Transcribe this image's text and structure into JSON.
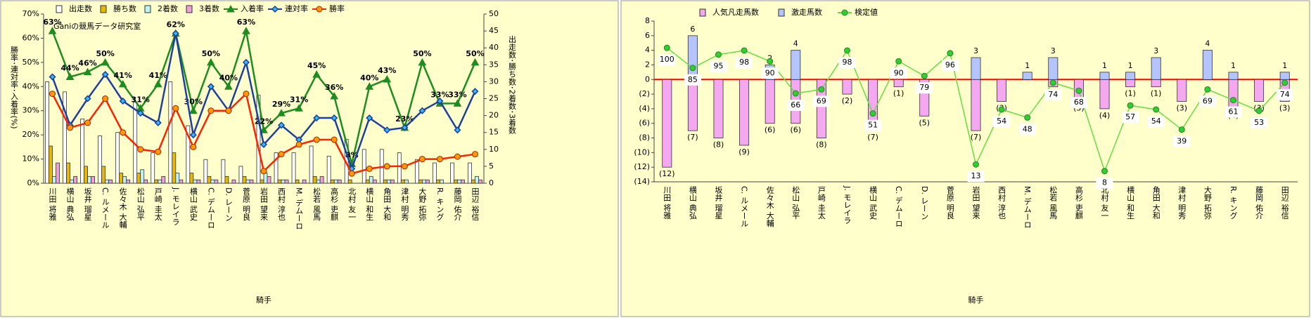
{
  "chart_data": [
    {
      "type": "combo",
      "watermark": "Ganiの競馬データ研究室",
      "ylabel": "勝率･連対率･入着率(%)",
      "y2label": "出走数･勝ち数･2着数･3着数",
      "xlabel": "騎手",
      "categories": [
        "川田 将雅",
        "横山 典弘",
        "坂井 瑠星",
        "C. ルメール",
        "佐々木 大輔",
        "松山 弘平",
        "戸崎 圭太",
        "J. モレイラ",
        "横山 武史",
        "C. デムーロ",
        "D. レーン",
        "菅原 明良",
        "岩田 望来",
        "西村 淳也",
        "M. デムーロ",
        "松若 風馬",
        "高杉 吏麒",
        "北村 友一",
        "横山 和生",
        "角田 大和",
        "津村 明秀",
        "大野 拓弥",
        "R. キング",
        "藤岡 佑介",
        "田辺 裕信"
      ],
      "bar_mode": "grouped",
      "legend": "top",
      "ylim": [
        0,
        70
      ],
      "yticks": [
        {
          "value": 0,
          "label": "0%"
        },
        {
          "value": 10,
          "label": "10%"
        },
        {
          "value": 20,
          "label": "20%"
        },
        {
          "value": 30,
          "label": "30%"
        },
        {
          "value": 40,
          "label": "40%"
        },
        {
          "value": 50,
          "label": "50%"
        },
        {
          "value": 60,
          "label": "60%"
        },
        {
          "value": 70,
          "label": "70%"
        }
      ],
      "y2lim": [
        0,
        50
      ],
      "y2ticks": [
        0,
        5,
        10,
        15,
        20,
        25,
        30,
        35,
        40,
        45,
        50
      ],
      "series": [
        {
          "name": "出走数",
          "type": "bar",
          "axis": "y2",
          "color": "#ffffff",
          "values": [
            30,
            27,
            19,
            14,
            15,
            24,
            9,
            30,
            17,
            7,
            7,
            5,
            26,
            9,
            9,
            11,
            8,
            13,
            10,
            10,
            9,
            7,
            6,
            6,
            6
          ]
        },
        {
          "name": "勝ち数",
          "type": "bar",
          "axis": "y2",
          "color": "#e8b800",
          "values": [
            11,
            6,
            5,
            5,
            3,
            3,
            1,
            9,
            3,
            2,
            2,
            2,
            1,
            1,
            1,
            2,
            1,
            1,
            1,
            1,
            1,
            1,
            1,
            1,
            1
          ]
        },
        {
          "name": "2着数",
          "type": "bar",
          "axis": "y2",
          "color": "#bff4f4",
          "values": [
            2,
            1,
            2,
            1,
            2,
            4,
            1,
            3,
            1,
            1,
            0,
            1,
            3,
            1,
            0,
            1,
            1,
            0,
            2,
            1,
            1,
            1,
            1,
            1,
            2
          ]
        },
        {
          "name": "3着数",
          "type": "bar",
          "axis": "y2",
          "color": "#f0a0d8",
          "values": [
            6,
            2,
            2,
            1,
            1,
            1,
            2,
            1,
            1,
            1,
            1,
            1,
            2,
            1,
            1,
            2,
            1,
            0,
            1,
            1,
            0,
            1,
            0,
            1,
            1
          ]
        },
        {
          "name": "入着率",
          "type": "line",
          "color": "#1e8c1e",
          "marker": "triangle",
          "marker_fill": "#1e8c1e",
          "label_position": "above",
          "values": [
            63,
            44,
            46,
            50,
            41,
            31,
            41,
            62,
            30,
            50,
            40,
            63,
            22,
            29,
            31,
            45,
            36,
            8,
            40,
            43,
            23,
            50,
            33,
            33,
            50
          ],
          "value_labels": [
            "63%",
            "44%",
            "46%",
            "50%",
            "41%",
            "31%",
            "41%",
            "62%",
            "30%",
            "50%",
            "40%",
            "63%",
            "22%",
            "29%",
            "31%",
            "45%",
            "36%",
            "8%",
            "40%",
            "43%",
            "23%",
            "50%",
            "33%",
            "33%",
            "50%"
          ]
        },
        {
          "name": "連対率",
          "type": "line",
          "color": "#1f3f9f",
          "marker": "diamond",
          "marker_fill": "#33bbee",
          "values": [
            44,
            24,
            35,
            45,
            34,
            29,
            25,
            62,
            20,
            40,
            30,
            50,
            16,
            24,
            18,
            27,
            27,
            6,
            27,
            22,
            23,
            30,
            34,
            22,
            38
          ]
        },
        {
          "name": "勝率",
          "type": "line",
          "color": "#ff2200",
          "marker": "circle",
          "marker_fill": "#ff9900",
          "values": [
            37,
            23,
            25,
            35,
            21,
            14,
            13,
            31,
            15,
            30,
            30,
            37,
            5,
            12,
            16,
            18,
            18,
            4,
            6,
            7,
            7,
            10,
            10,
            11,
            12
          ]
        }
      ]
    },
    {
      "type": "combo",
      "xlabel": "騎手",
      "categories": [
        "川田 将雅",
        "横山 典弘",
        "坂井 瑠星",
        "C. ルメール",
        "佐々木 大輔",
        "松山 弘平",
        "戸崎 圭太",
        "J. モレイラ",
        "横山 武史",
        "C. デムーロ",
        "D. レーン",
        "菅原 明良",
        "岩田 望来",
        "西村 淳也",
        "M. デムーロ",
        "松若 風馬",
        "高杉 吏麒",
        "北村 友一",
        "横山 和生",
        "角田 大和",
        "津村 明秀",
        "大野 拓弥",
        "R. キング",
        "藤岡 佑介",
        "田辺 裕信"
      ],
      "bar_mode": "overlay",
      "legend": "top",
      "baseline_color": "#ff0000",
      "ylim": [
        -14,
        8
      ],
      "yticks": [
        8,
        6,
        4,
        2,
        0,
        {
          "value": -2,
          "label": "(2)"
        },
        {
          "value": -4,
          "label": "(4)"
        },
        {
          "value": -6,
          "label": "(6)"
        },
        {
          "value": -8,
          "label": "(8)"
        },
        {
          "value": -10,
          "label": "(10)"
        },
        {
          "value": -12,
          "label": "(12)"
        },
        {
          "value": -14,
          "label": "(14)"
        }
      ],
      "y2lim": [
        0,
        120
      ],
      "series": [
        {
          "name": "人気凡走馬数",
          "type": "bar",
          "color": "#f4a8f0",
          "label_color": "#ee0000",
          "values": [
            -12,
            -7,
            -8,
            -9,
            -6,
            -6,
            -8,
            -2,
            -7,
            -1,
            -5,
            0,
            -7,
            -3,
            0,
            -1,
            -3,
            -4,
            -1,
            -1,
            -3,
            0,
            -4,
            -3,
            -3
          ],
          "value_labels": [
            "(12)",
            "(7)",
            "(8)",
            "(9)",
            "(6)",
            "(6)",
            "(8)",
            "(2)",
            "(7)",
            "(1)",
            "(5)",
            null,
            "(7)",
            "(3)",
            null,
            "(1)",
            "(3)",
            "(4)",
            "(1)",
            "(1)",
            "(3)",
            null,
            "(4)",
            "(3)",
            "(3)"
          ]
        },
        {
          "name": "激走馬数",
          "type": "bar",
          "color": "#b4c4ff",
          "label_color": "#000000",
          "values": [
            0,
            6,
            0,
            0,
            2,
            4,
            0,
            0,
            0,
            0,
            0,
            0,
            3,
            0,
            1,
            3,
            0,
            1,
            1,
            3,
            0,
            4,
            1,
            0,
            1
          ],
          "value_labels": [
            null,
            "6",
            null,
            null,
            "2",
            "4",
            null,
            null,
            null,
            null,
            null,
            null,
            "3",
            null,
            "1",
            "3",
            null,
            "1",
            "1",
            "3",
            null,
            "4",
            "1",
            null,
            "1"
          ]
        },
        {
          "name": "検定値",
          "type": "line",
          "axis": "y2",
          "color": "#66dd44",
          "marker": "circle",
          "marker_fill": "#33cc33",
          "label_position": "below",
          "label_color": "#008080",
          "values": [
            100,
            85,
            95,
            98,
            90,
            66,
            69,
            98,
            51,
            90,
            79,
            96,
            13,
            54,
            48,
            74,
            68,
            8,
            57,
            54,
            39,
            69,
            61,
            53,
            74
          ]
        }
      ]
    }
  ]
}
